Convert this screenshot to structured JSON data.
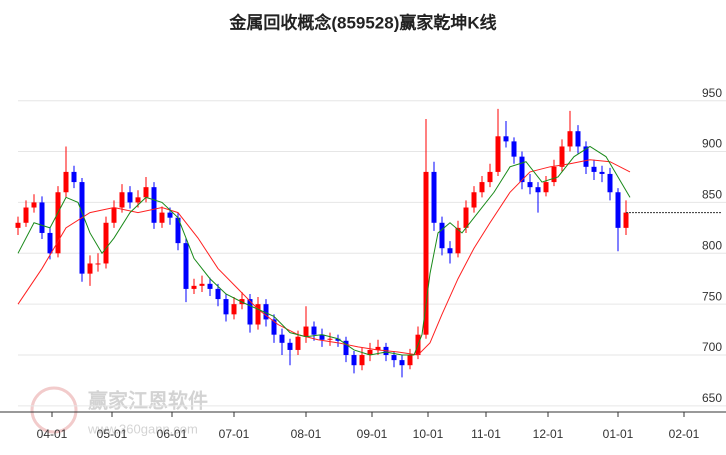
{
  "chart_data": {
    "type": "candlestick",
    "title": "金属回收概念(859528)赢家乾坤K线",
    "watermark": {
      "title": "赢家江恩软件",
      "url": "www.360gann.com"
    },
    "up_color": "#ff0000",
    "down_color": "#0000ff",
    "grid": true,
    "ylim": [
      644,
      990
    ],
    "yticks": [
      650,
      700,
      750,
      800,
      850,
      900,
      950
    ],
    "xlim": [
      0,
      340
    ],
    "xticks": [
      {
        "value": 17,
        "label": "04-01"
      },
      {
        "value": 47,
        "label": "05-01"
      },
      {
        "value": 77,
        "label": "06-01"
      },
      {
        "value": 108,
        "label": "07-01"
      },
      {
        "value": 144,
        "label": "08-01"
      },
      {
        "value": 177,
        "label": "09-01"
      },
      {
        "value": 205,
        "label": "10-01"
      },
      {
        "value": 234,
        "label": "11-01"
      },
      {
        "value": 265,
        "label": "12-01"
      },
      {
        "value": 300,
        "label": "01-01"
      },
      {
        "value": 333,
        "label": "02-01"
      }
    ],
    "x": [
      0,
      4,
      8,
      12,
      16,
      20,
      24,
      28,
      32,
      36,
      40,
      44,
      48,
      52,
      56,
      60,
      64,
      68,
      72,
      76,
      80,
      84,
      88,
      92,
      96,
      100,
      104,
      108,
      112,
      116,
      120,
      124,
      128,
      132,
      136,
      140,
      144,
      148,
      152,
      156,
      160,
      164,
      168,
      172,
      176,
      180,
      184,
      188,
      192,
      196,
      200,
      204,
      208,
      212,
      216,
      220,
      224,
      228,
      232,
      236,
      240,
      244,
      248,
      252,
      256,
      260,
      264,
      268,
      272,
      276,
      280,
      284,
      288,
      292,
      296,
      300,
      304
    ],
    "candles": [
      [
        825,
        836,
        818,
        830
      ],
      [
        830,
        852,
        826,
        845
      ],
      [
        845,
        858,
        840,
        850
      ],
      [
        850,
        856,
        814,
        820
      ],
      [
        820,
        826,
        794,
        800
      ],
      [
        800,
        866,
        796,
        860
      ],
      [
        860,
        905,
        855,
        880
      ],
      [
        880,
        886,
        864,
        870
      ],
      [
        870,
        874,
        772,
        780
      ],
      [
        780,
        798,
        768,
        790
      ],
      [
        790,
        800,
        782,
        790
      ],
      [
        790,
        836,
        785,
        830
      ],
      [
        830,
        852,
        825,
        845
      ],
      [
        845,
        868,
        840,
        860
      ],
      [
        860,
        866,
        844,
        850
      ],
      [
        850,
        862,
        845,
        855
      ],
      [
        855,
        875,
        850,
        865
      ],
      [
        865,
        870,
        824,
        830
      ],
      [
        830,
        846,
        825,
        840
      ],
      [
        840,
        845,
        828,
        835
      ],
      [
        835,
        840,
        803,
        810
      ],
      [
        810,
        815,
        752,
        765
      ],
      [
        765,
        775,
        760,
        768
      ],
      [
        768,
        778,
        762,
        770
      ],
      [
        770,
        776,
        758,
        765
      ],
      [
        765,
        770,
        748,
        755
      ],
      [
        755,
        760,
        733,
        740
      ],
      [
        740,
        757,
        735,
        750
      ],
      [
        750,
        762,
        745,
        755
      ],
      [
        755,
        760,
        722,
        730
      ],
      [
        730,
        757,
        725,
        750
      ],
      [
        750,
        755,
        728,
        735
      ],
      [
        735,
        740,
        712,
        720
      ],
      [
        720,
        726,
        700,
        712
      ],
      [
        712,
        716,
        690,
        705
      ],
      [
        705,
        724,
        700,
        718
      ],
      [
        718,
        748,
        712,
        728
      ],
      [
        728,
        733,
        714,
        720
      ],
      [
        720,
        726,
        708,
        715
      ],
      [
        715,
        722,
        709,
        716
      ],
      [
        716,
        720,
        708,
        714
      ],
      [
        714,
        718,
        693,
        700
      ],
      [
        700,
        704,
        682,
        690
      ],
      [
        690,
        707,
        685,
        700
      ],
      [
        700,
        712,
        694,
        705
      ],
      [
        705,
        715,
        700,
        708
      ],
      [
        708,
        712,
        694,
        700
      ],
      [
        700,
        704,
        688,
        695
      ],
      [
        695,
        700,
        678,
        690
      ],
      [
        690,
        706,
        686,
        700
      ],
      [
        700,
        728,
        696,
        720
      ],
      [
        720,
        932,
        716,
        880
      ],
      [
        880,
        890,
        822,
        830
      ],
      [
        830,
        836,
        798,
        805
      ],
      [
        805,
        812,
        790,
        800
      ],
      [
        800,
        832,
        796,
        825
      ],
      [
        825,
        852,
        820,
        845
      ],
      [
        845,
        866,
        840,
        860
      ],
      [
        860,
        876,
        855,
        870
      ],
      [
        870,
        888,
        865,
        880
      ],
      [
        880,
        942,
        876,
        915
      ],
      [
        915,
        930,
        904,
        910
      ],
      [
        910,
        914,
        888,
        895
      ],
      [
        895,
        900,
        863,
        870
      ],
      [
        870,
        878,
        858,
        865
      ],
      [
        865,
        870,
        840,
        860
      ],
      [
        860,
        876,
        856,
        870
      ],
      [
        870,
        892,
        866,
        885
      ],
      [
        885,
        912,
        880,
        905
      ],
      [
        905,
        940,
        900,
        920
      ],
      [
        920,
        926,
        898,
        905
      ],
      [
        905,
        910,
        878,
        885
      ],
      [
        885,
        892,
        872,
        880
      ],
      [
        880,
        886,
        870,
        878
      ],
      [
        878,
        884,
        852,
        860
      ],
      [
        860,
        864,
        802,
        825
      ],
      [
        825,
        852,
        818,
        840
      ]
    ],
    "lines": [
      {
        "color": "#ff2020",
        "x": [
          0,
          12,
          24,
          36,
          48,
          60,
          72,
          80,
          90,
          100,
          110,
          120,
          130,
          140,
          150,
          160,
          170,
          180,
          190,
          200,
          206,
          212,
          220,
          228,
          236,
          246,
          256,
          266,
          276,
          286,
          296,
          306
        ],
        "values": [
          750,
          785,
          825,
          840,
          845,
          840,
          845,
          840,
          815,
          785,
          765,
          745,
          730,
          720,
          715,
          712,
          708,
          705,
          703,
          700,
          712,
          740,
          775,
          805,
          830,
          860,
          880,
          885,
          888,
          892,
          890,
          880
        ]
      },
      {
        "color": "#1a8a1a",
        "x": [
          0,
          8,
          16,
          24,
          30,
          36,
          42,
          48,
          56,
          64,
          72,
          80,
          88,
          96,
          104,
          112,
          120,
          128,
          136,
          144,
          152,
          160,
          168,
          176,
          184,
          192,
          198,
          202,
          206,
          210,
          216,
          222,
          230,
          238,
          246,
          254,
          262,
          270,
          278,
          286,
          294,
          300,
          306
        ],
        "values": [
          800,
          830,
          825,
          855,
          850,
          820,
          800,
          815,
          840,
          855,
          850,
          835,
          795,
          775,
          760,
          752,
          745,
          738,
          722,
          718,
          720,
          716,
          705,
          700,
          703,
          700,
          700,
          720,
          780,
          820,
          830,
          820,
          840,
          860,
          885,
          890,
          870,
          875,
          895,
          905,
          895,
          875,
          855
        ]
      }
    ]
  }
}
